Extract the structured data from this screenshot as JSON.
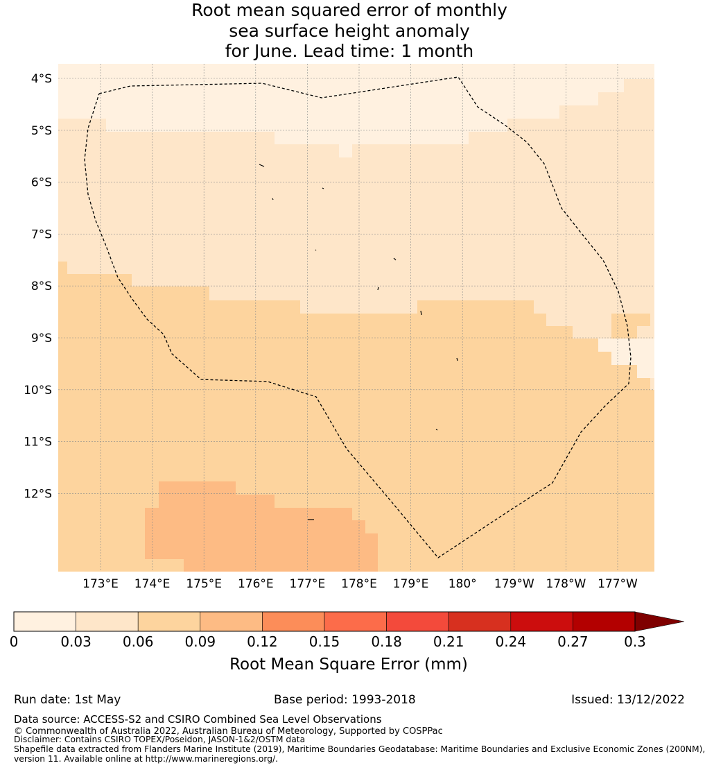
{
  "title": {
    "line1": "Root mean squared error of monthly",
    "line2": "sea surface height anomaly",
    "line3": "for June. Lead time: 1 month"
  },
  "map": {
    "lat_labels": [
      "4°S",
      "5°S",
      "6°S",
      "7°S",
      "8°S",
      "9°S",
      "10°S",
      "11°S",
      "12°S"
    ],
    "lon_labels": [
      "173°E",
      "174°E",
      "175°E",
      "176°E",
      "177°E",
      "178°E",
      "179°E",
      "180°",
      "179°W",
      "178°W",
      "177°W"
    ],
    "grid": true,
    "eez_boundary": "dashed"
  },
  "colorbar": {
    "ticks": [
      "0",
      "0.03",
      "0.06",
      "0.09",
      "0.12",
      "0.15",
      "0.18",
      "0.21",
      "0.24",
      "0.27",
      "0.3"
    ],
    "colors": [
      "#fff1e0",
      "#fee6c9",
      "#fdd49e",
      "#fdbb84",
      "#fc8d59",
      "#fc6c4a",
      "#f34a3b",
      "#d7301f",
      "#cc0d0d",
      "#b30000"
    ],
    "extend_color": "#7f0000",
    "label": "Root Mean Square Error (mm)"
  },
  "footer": {
    "run_date": "Run date: 1st May",
    "base_period": "Base period: 1993-2018",
    "issued": "Issued: 13/12/2022",
    "data_source": "Data source: ACCESS-S2 and CSIRO Combined Sea Level Observations",
    "copyright": "© Commonwealth of Australia 2022, Australian Bureau of Meteorology, Supported by COSPPac",
    "disclaimer": "Disclaimer: Contains CSIRO TOPEX/Poseidon, JASON-1&2/OSTM data",
    "shapefile_1": "Shapefile data extracted from Flanders Marine Institute (2019), Maritime Boundaries Geodatabase: Maritime Boundaries and Exclusive Economic Zones (200NM),",
    "shapefile_2": "version 11. Available online at http://www.marineregions.org/."
  }
}
